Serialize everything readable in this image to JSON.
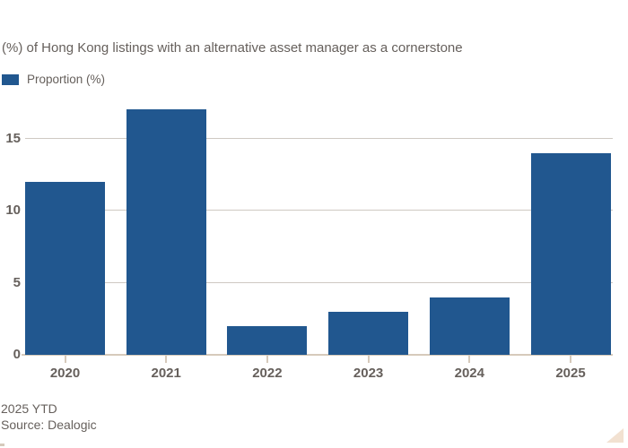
{
  "subtitle": "(%) of Hong Kong listings with an alternative asset manager as a cornerstone",
  "legend": {
    "label": "Proportion (%)"
  },
  "footer": {
    "note": "2025 YTD",
    "source": "Source: Dealogic"
  },
  "colors": {
    "bar": "#21578f",
    "gridline": "#cfc9c2",
    "axis": "#d6cabb",
    "text": "#66605c",
    "corner_triangle": "#f2e1d1",
    "background": "#ffffff"
  },
  "chart_data": {
    "type": "bar",
    "title": "",
    "subtitle": "(%) of Hong Kong listings with an alternative asset manager as a cornerstone",
    "series_name": "Proportion (%)",
    "categories": [
      "2020",
      "2021",
      "2022",
      "2023",
      "2024",
      "2025"
    ],
    "values": [
      12,
      17,
      2,
      3,
      4,
      14
    ],
    "xlabel": "",
    "ylabel": "",
    "yticks": [
      0,
      5,
      10,
      15
    ],
    "ylim": [
      0,
      17.8
    ],
    "grid": "horizontal",
    "legend_position": "top-left",
    "footnote": "2025 YTD",
    "source": "Source: Dealogic"
  }
}
